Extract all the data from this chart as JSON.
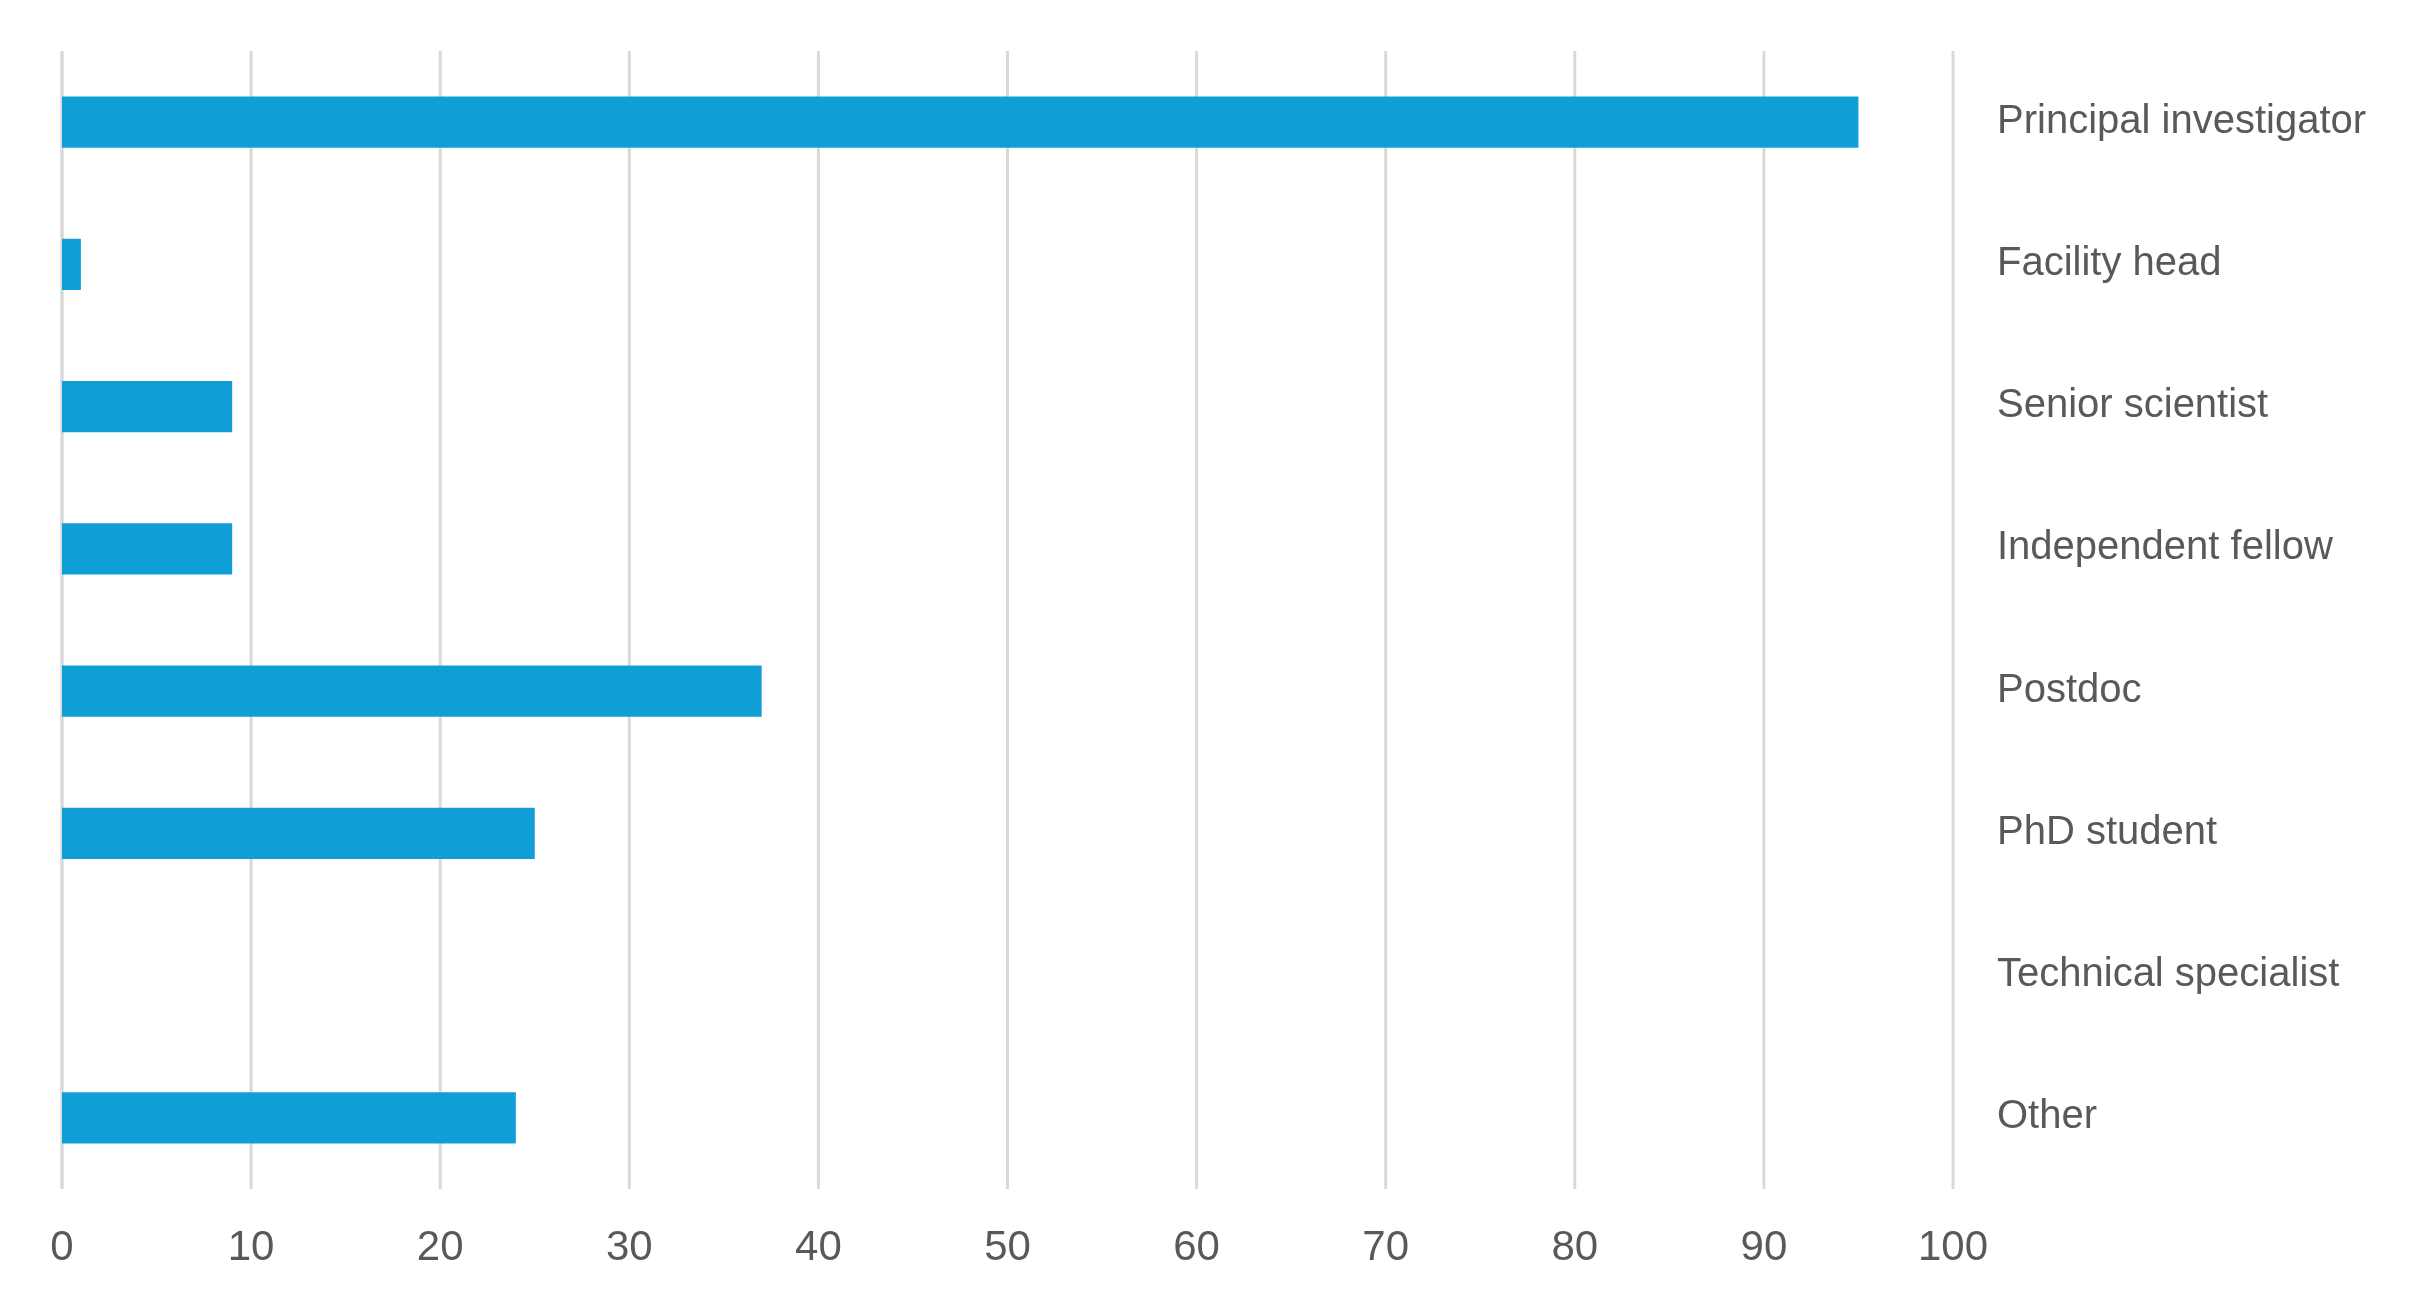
{
  "chart_data": {
    "type": "bar",
    "orientation": "horizontal",
    "categories": [
      "Principal investigator",
      "Facility head",
      "Senior scientist",
      "Independent fellow",
      "Postdoc",
      "PhD student",
      "Technical specialist",
      "Other"
    ],
    "values": [
      95,
      1,
      9,
      9,
      37,
      25,
      0,
      24
    ],
    "color": "#0f9ed5",
    "xlim": [
      0,
      100
    ],
    "xticks": [
      0,
      10,
      20,
      30,
      40,
      50,
      60,
      70,
      80,
      90,
      100
    ],
    "grid": "x"
  }
}
